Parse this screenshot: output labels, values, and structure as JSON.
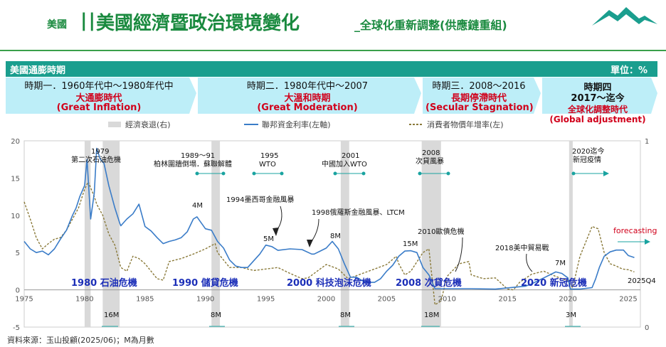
{
  "header": {
    "small": "美國",
    "bars": "||",
    "title": "美國經濟暨政治環境變化",
    "subtitle": "_全球化重新調整(供應鏈重組)"
  },
  "banner": {
    "left": "美國通膨時期",
    "right": "單位：%"
  },
  "periods": [
    {
      "label": "時期一．1960年代中～1980年代中",
      "zh": "大通膨時代",
      "en": "(Great Inflation)"
    },
    {
      "label": "時期二．1980年代中～2007",
      "zh": "大溫和時期",
      "en": "(Great Moderation)"
    },
    {
      "label": "時期三．2008～2016",
      "zh": "長期停滯時代",
      "en": "(Secular Stagnation)"
    },
    {
      "label1": "時期四",
      "label2": "2017～迄今",
      "zh": "全球化調整時代",
      "en": "(Global adjustment)"
    }
  ],
  "legend": {
    "recession": "經濟衰退(右)",
    "fed": "聯邦資金利率(左軸)",
    "cpi": "消費者物價年增率(左)"
  },
  "events": {
    "e1979": "1979",
    "e1979b": "第二次石油危機",
    "e1989": "1989～91",
    "e1989b": "柏林圍牆倒塌．蘇聯解體",
    "e1995": "1995",
    "e1995b": "WTO",
    "e2001": "2001",
    "e2001b": "中國加入WTO",
    "e2008": "2008",
    "e2008b": "次貸風暴",
    "e2020": "2020迄今",
    "e2020b": "新冠疫情",
    "mex": "1994墨西哥金融風暴",
    "asia": "1998俄羅斯金融風暴、LTCM",
    "euro": "2010歐債危機",
    "trade": "2018美中貿易戰",
    "forecasting": "forecasting"
  },
  "durations": {
    "d4m": "4M",
    "d5m": "5M",
    "d8m": "8M",
    "d15m": "15M",
    "d7m": "7M",
    "r16m": "16M",
    "r8m": "8M",
    "r8m2": "8M",
    "r18m": "18M",
    "r3m": "3M"
  },
  "crises": {
    "c1980": "1980 石油危機",
    "c1990": "1990 儲貸危機",
    "c2000": "2000 科技泡沫危機",
    "c2008": "2008 次貸危機",
    "c2020": "2020 新冠危機"
  },
  "end_label": "2025Q4",
  "source": "資料來源：玉山投顧(2025/06)；M為月數",
  "colors": {
    "fed": "#3a7cc8",
    "cpi": "#8a7a3a",
    "recession": "#d9d9d9",
    "accent": "#1a8a3f",
    "red": "#d1001b",
    "blue": "#1c2fb8",
    "teal": "#1aa3a0"
  },
  "chart_data": {
    "type": "line",
    "xlim": [
      1975,
      2026
    ],
    "ylim": [
      -5,
      20
    ],
    "y2lim": [
      0,
      1
    ],
    "xticks": [
      1975,
      1980,
      1985,
      1990,
      1995,
      2000,
      2005,
      2010,
      2015,
      2020,
      2025
    ],
    "yticks": [
      -5,
      0,
      5,
      10,
      15,
      20
    ],
    "y2ticks": [
      0,
      1
    ],
    "recessions": [
      [
        1980.0,
        1980.5
      ],
      [
        1981.5,
        1982.9
      ],
      [
        1990.5,
        1991.2
      ],
      [
        2001.2,
        2001.9
      ],
      [
        2007.9,
        2009.5
      ],
      [
        2020.1,
        2020.4
      ]
    ],
    "series": [
      {
        "name": "聯邦資金利率(左軸)",
        "x": [
          1975,
          1975.5,
          1976,
          1976.5,
          1977,
          1977.5,
          1978,
          1978.5,
          1979,
          1979.3,
          1979.6,
          1980,
          1980.2,
          1980.5,
          1980.8,
          1981,
          1981.3,
          1981.6,
          1982,
          1982.5,
          1982.9,
          1983,
          1983.5,
          1984,
          1984.5,
          1985,
          1985.5,
          1986,
          1986.5,
          1987,
          1987.5,
          1988,
          1988.5,
          1989,
          1989.3,
          1989.6,
          1990,
          1990.5,
          1991,
          1991.5,
          1992,
          1992.5,
          1993,
          1993.5,
          1994,
          1994.5,
          1995,
          1995.5,
          1996,
          1997,
          1998,
          1998.8,
          1999,
          1999.5,
          2000,
          2000.5,
          2001,
          2001.5,
          2002,
          2002.5,
          2003,
          2003.5,
          2004,
          2004.5,
          2005,
          2005.5,
          2006,
          2006.5,
          2007,
          2007.5,
          2008,
          2008.5,
          2009,
          2010,
          2012,
          2014,
          2015.9,
          2016.5,
          2017,
          2017.5,
          2018,
          2018.5,
          2019,
          2019.5,
          2020,
          2020.2,
          2021,
          2022,
          2022.3,
          2022.6,
          2023,
          2023.5,
          2024,
          2024.6,
          2025,
          2025.5
        ],
        "values": [
          6.5,
          5.5,
          5.0,
          5.2,
          4.7,
          5.5,
          6.8,
          8.0,
          10.0,
          11.0,
          12.5,
          14.0,
          17.5,
          9.5,
          13.0,
          19.0,
          17.5,
          17.0,
          14.0,
          11.0,
          9.0,
          8.6,
          9.5,
          10.2,
          11.5,
          8.5,
          7.9,
          7.0,
          6.2,
          6.5,
          6.7,
          7.0,
          7.8,
          9.5,
          9.8,
          9.1,
          8.2,
          8.0,
          6.5,
          5.6,
          4.0,
          3.2,
          3.0,
          3.0,
          3.9,
          4.8,
          6.0,
          5.8,
          5.3,
          5.5,
          5.4,
          4.8,
          4.8,
          5.2,
          5.6,
          6.5,
          5.5,
          3.5,
          1.7,
          1.7,
          1.2,
          1.0,
          1.0,
          1.5,
          2.5,
          3.3,
          4.5,
          5.2,
          5.25,
          5.0,
          3.0,
          2.0,
          0.15,
          0.15,
          0.15,
          0.1,
          0.4,
          0.5,
          0.8,
          1.2,
          1.6,
          2.0,
          2.4,
          2.2,
          1.6,
          0.1,
          0.1,
          0.3,
          1.5,
          3.0,
          4.5,
          5.1,
          5.33,
          5.33,
          4.6,
          4.33
        ]
      },
      {
        "name": "消費者物價年增率(左)",
        "x": [
          1975,
          1975.5,
          1976,
          1976.5,
          1977,
          1977.5,
          1978,
          1978.5,
          1979,
          1979.5,
          1980,
          1980.3,
          1980.8,
          1981,
          1981.5,
          1982,
          1982.5,
          1983,
          1983.5,
          1984,
          1984.5,
          1985,
          1986,
          1986.5,
          1987,
          1988,
          1989,
          1990,
          1990.8,
          1991,
          1991.5,
          1992,
          1993,
          1994,
          1995,
          1996,
          1997,
          1998,
          1998.5,
          1999,
          2000,
          2001,
          2001.8,
          2002,
          2003,
          2004,
          2005,
          2005.8,
          2006,
          2006.5,
          2007,
          2008,
          2008.5,
          2009,
          2009.5,
          2010,
          2011,
          2011.8,
          2012,
          2013,
          2014,
          2015,
          2015.5,
          2016,
          2017,
          2018,
          2019,
          2020,
          2020.4,
          2021,
          2021.5,
          2022,
          2022.5,
          2023,
          2023.5,
          2024,
          2024.5,
          2025,
          2025.5
        ],
        "values": [
          11.8,
          9.5,
          7.0,
          5.5,
          6.2,
          6.8,
          7.0,
          8.0,
          9.5,
          11.0,
          13.5,
          14.5,
          12.5,
          11.5,
          10.0,
          7.5,
          6.0,
          3.0,
          2.5,
          4.5,
          4.2,
          3.5,
          1.5,
          1.3,
          3.8,
          4.2,
          4.8,
          5.5,
          6.2,
          5.0,
          4.0,
          3.0,
          3.0,
          2.6,
          2.8,
          3.0,
          2.2,
          1.5,
          1.6,
          2.2,
          3.4,
          2.8,
          1.5,
          1.6,
          2.2,
          2.8,
          3.4,
          4.5,
          3.5,
          2.0,
          2.5,
          5.0,
          5.5,
          -2.0,
          -1.5,
          1.8,
          3.5,
          3.8,
          2.0,
          1.5,
          1.6,
          0.1,
          0.0,
          1.0,
          2.1,
          2.5,
          1.8,
          1.2,
          0.3,
          4.5,
          6.5,
          8.5,
          8.2,
          5.0,
          3.5,
          3.2,
          2.8,
          2.7,
          2.4
        ]
      }
    ]
  }
}
